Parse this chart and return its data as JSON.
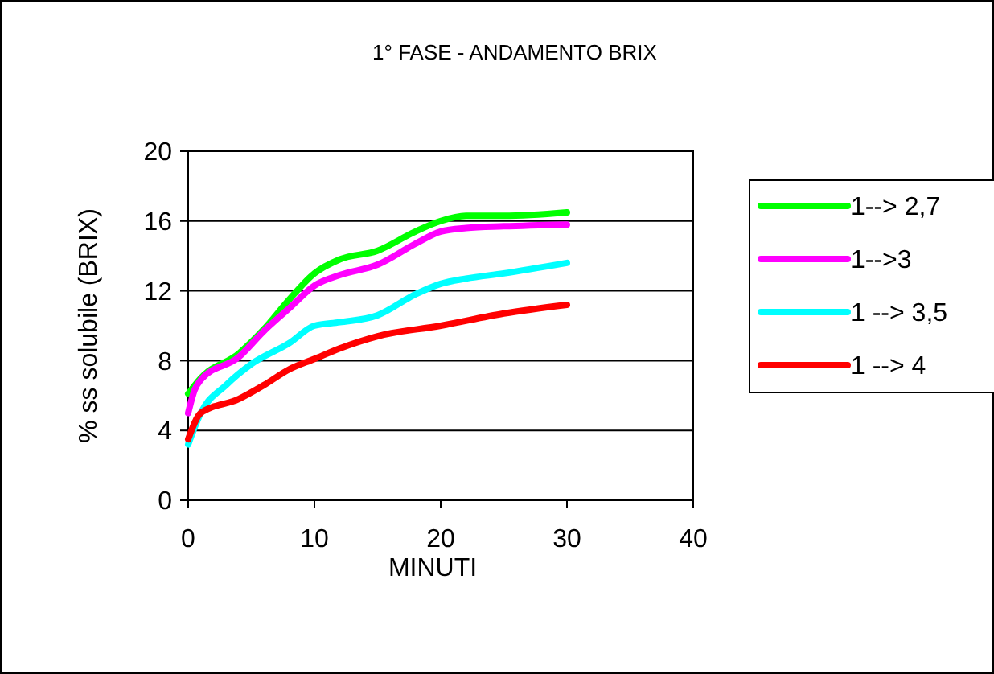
{
  "chart_data": {
    "type": "line",
    "title": "1° FASE - ANDAMENTO BRIX",
    "xlabel": "MINUTI",
    "ylabel": "% ss solubile (BRIX)",
    "xlim": [
      0,
      40
    ],
    "xticks": [
      0,
      10,
      20,
      30,
      40
    ],
    "ylim": [
      0,
      20
    ],
    "yticks": [
      0,
      4,
      8,
      12,
      16,
      20
    ],
    "grid": "y",
    "legend": "right",
    "marker": "none",
    "line_style": "solid",
    "series": [
      {
        "name": "1--> 2,7",
        "color": "#00ff00",
        "x": [
          0,
          1,
          4,
          6,
          8,
          10,
          12,
          15,
          18,
          20,
          22,
          25,
          30
        ],
        "values": [
          6.1,
          7.0,
          8.4,
          9.8,
          11.5,
          13.0,
          13.8,
          14.3,
          15.4,
          16.0,
          16.3,
          16.3,
          16.5
        ]
      },
      {
        "name": "1-->3",
        "color": "#ff00ff",
        "x": [
          0,
          0.5,
          1,
          4,
          6,
          8,
          10,
          12,
          15,
          18,
          20,
          22,
          25,
          30
        ],
        "values": [
          5.0,
          6.3,
          6.9,
          8.2,
          9.7,
          11.0,
          12.3,
          12.9,
          13.5,
          14.7,
          15.4,
          15.6,
          15.7,
          15.8
        ]
      },
      {
        "name": "1 --> 3,5",
        "color": "#00ffff",
        "x": [
          0,
          1,
          3,
          5,
          8,
          10,
          12,
          15,
          18,
          20,
          22,
          25,
          30
        ],
        "values": [
          3.2,
          5.0,
          6.6,
          7.8,
          9.0,
          10.0,
          10.2,
          10.6,
          11.8,
          12.4,
          12.7,
          13.0,
          13.6
        ]
      },
      {
        "name": "1 --> 4",
        "color": "#ff0000",
        "x": [
          0,
          1,
          4,
          6,
          8,
          10,
          12,
          15,
          20,
          25,
          30
        ],
        "values": [
          3.5,
          5.0,
          5.8,
          6.6,
          7.5,
          8.1,
          8.7,
          9.4,
          10.0,
          10.7,
          11.2
        ]
      }
    ]
  }
}
